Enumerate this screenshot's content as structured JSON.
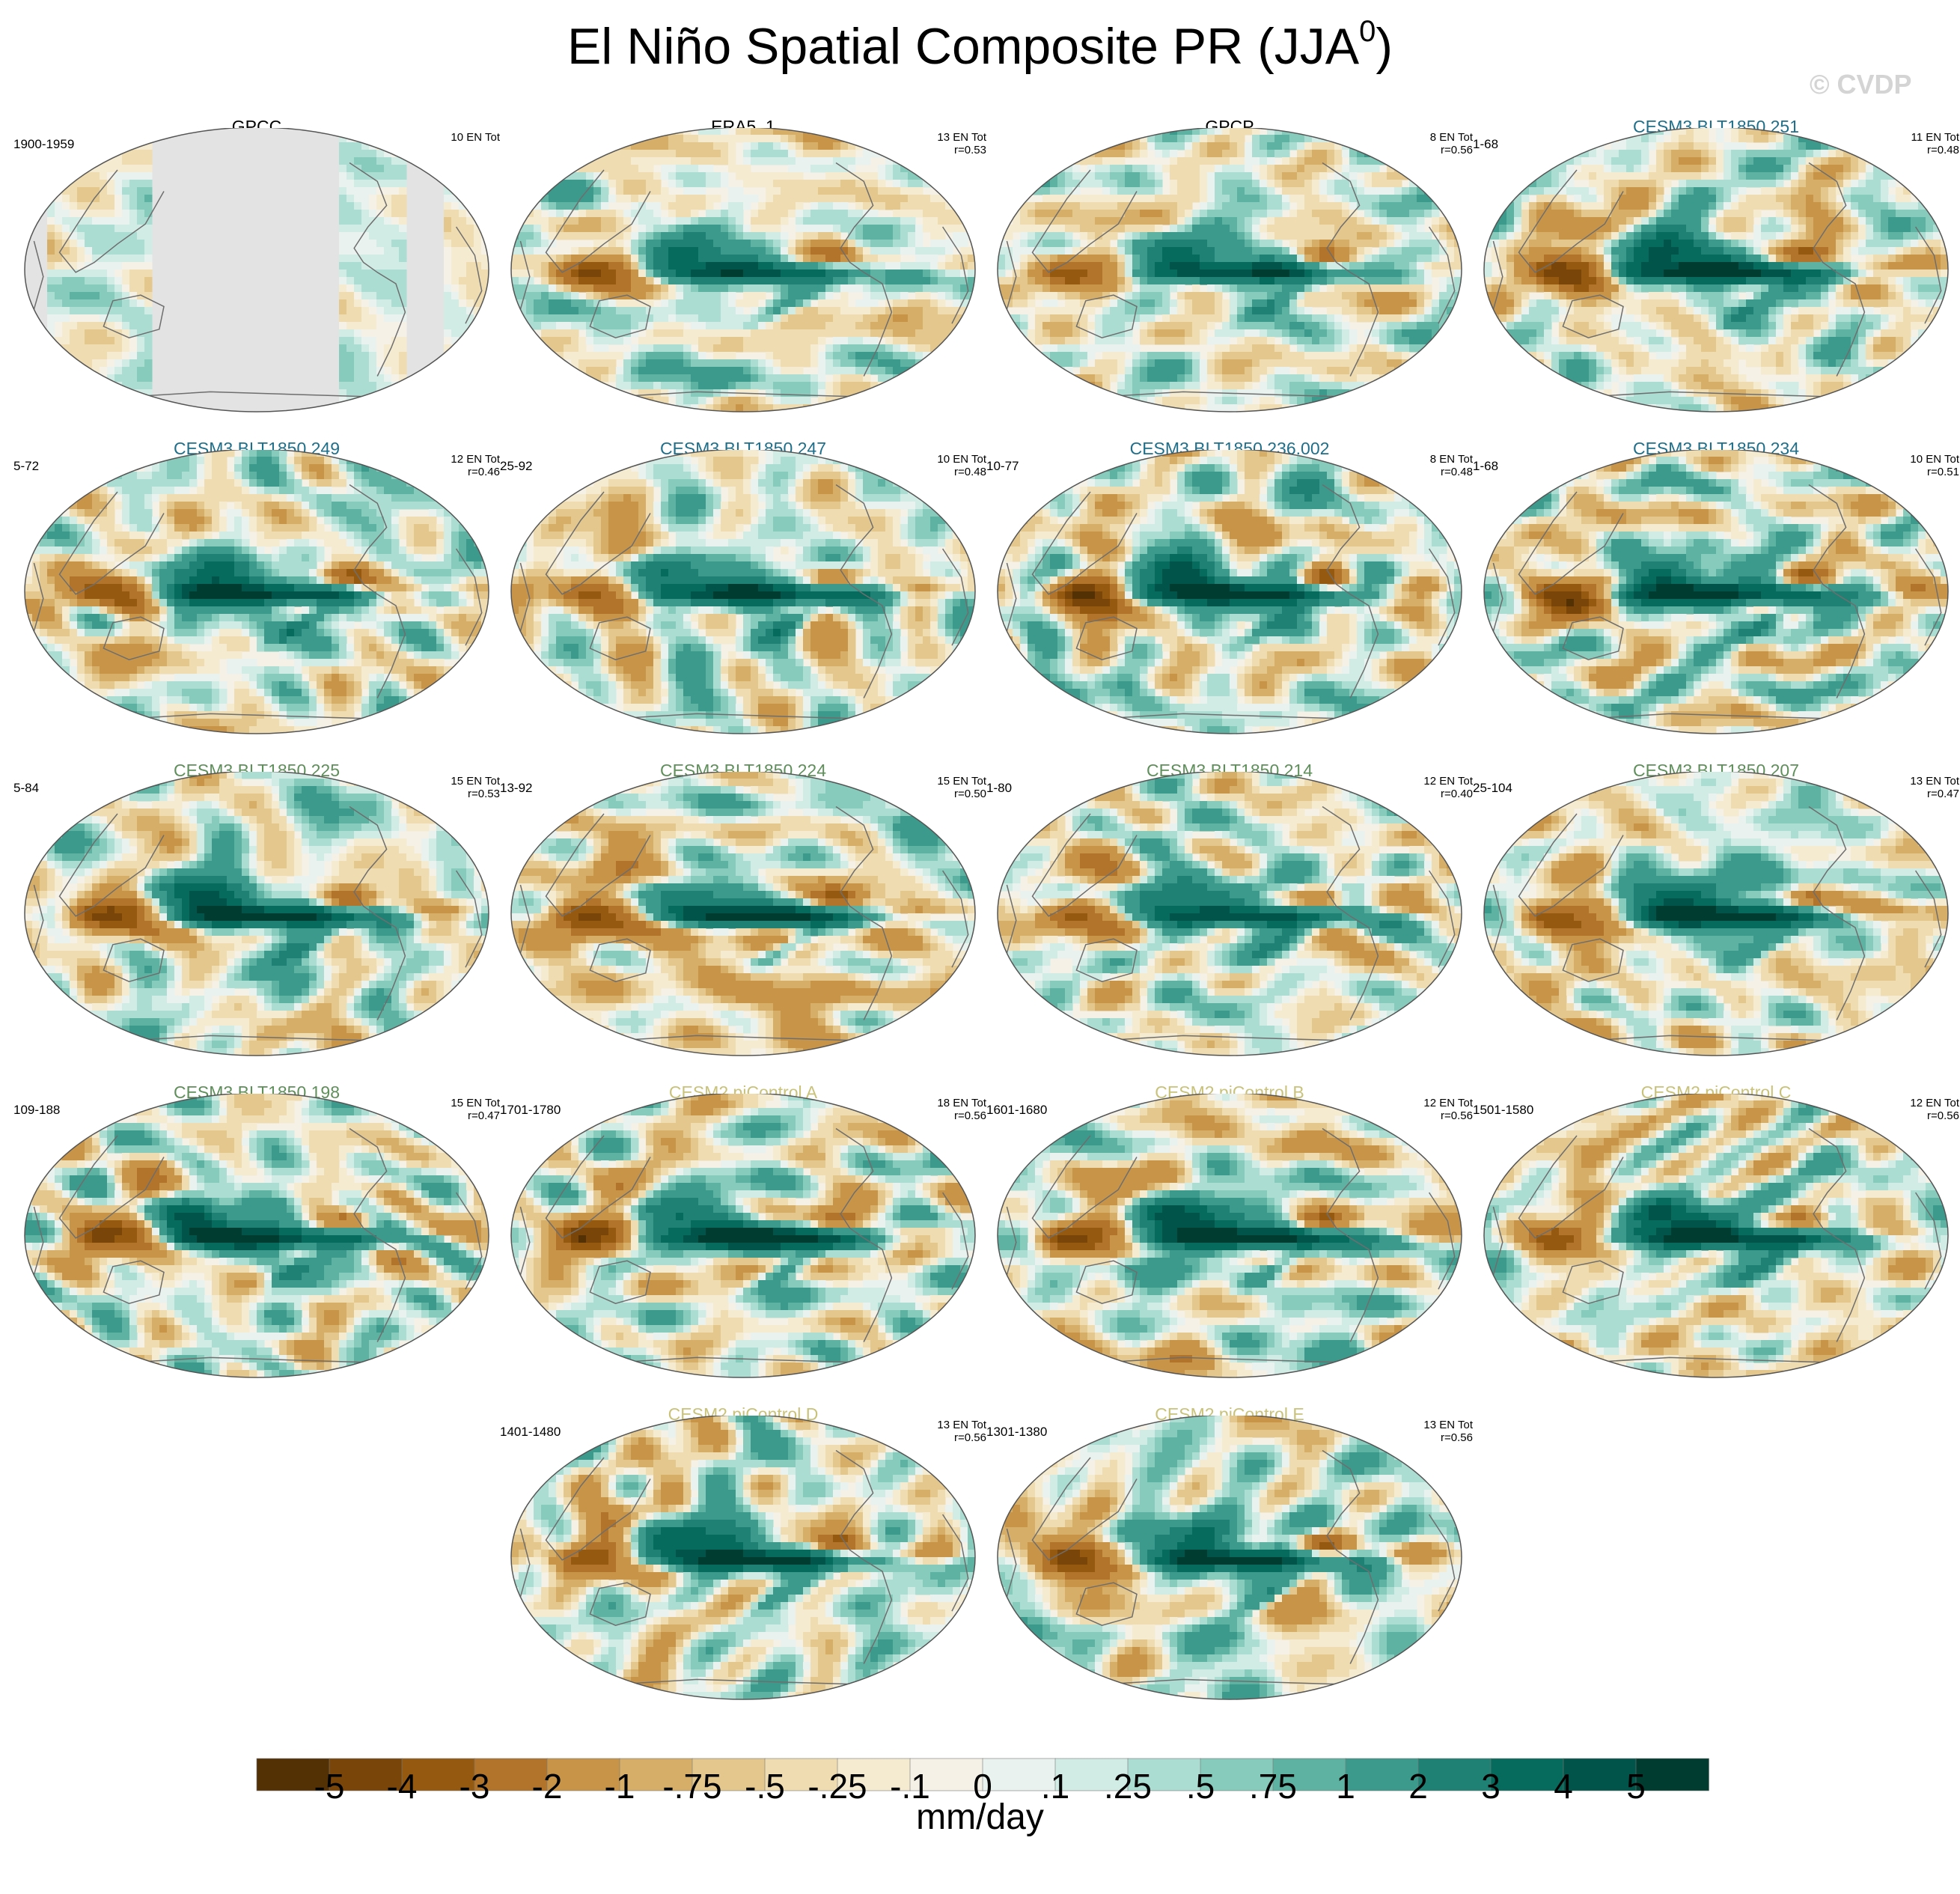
{
  "title": "El Niño Spatial Composite PR (JJA",
  "title_superscript": "0",
  "title_close": ")",
  "watermark": "© CVDP",
  "colors": {
    "title_obs": "#000000",
    "title_cesm3_blue": "#1f6f8b",
    "title_cesm3_green": "#5f8f5a",
    "title_cesm2": "#c9c27a",
    "missing_land": "#e3e3e3",
    "coast": "#6e6e6e"
  },
  "panels": [
    {
      "title": "GPCC",
      "title_color": "obs",
      "period": "1900-1959",
      "en_tot": "10 EN Tot",
      "r": "",
      "pattern": "gpcc",
      "amp": 0.5,
      "seed": 3
    },
    {
      "title": "ERA5_1",
      "title_color": "obs",
      "period": "",
      "en_tot": "13 EN Tot",
      "r": "r=0.53",
      "pattern": "obs",
      "amp": 0.8,
      "seed": 5
    },
    {
      "title": "GPCP",
      "title_color": "obs",
      "period": "",
      "en_tot": "8 EN Tot",
      "r": "r=0.56",
      "pattern": "obs",
      "amp": 0.85,
      "seed": 7
    },
    {
      "title": "CESM3 BLT1850 251",
      "title_color": "blue",
      "period": "1-68",
      "en_tot": "11 EN Tot",
      "r": "r=0.48",
      "pattern": "model",
      "amp": 1.0,
      "seed": 11
    },
    {
      "title": "CESM3 BLT1850 249",
      "title_color": "blue",
      "period": "5-72",
      "en_tot": "12 EN Tot",
      "r": "r=0.46",
      "pattern": "model",
      "amp": 1.0,
      "seed": 13
    },
    {
      "title": "CESM3 BLT1850 247",
      "title_color": "blue",
      "period": "25-92",
      "en_tot": "10 EN Tot",
      "r": "r=0.48",
      "pattern": "model",
      "amp": 1.0,
      "seed": 17
    },
    {
      "title": "CESM3 BLT1850 236.002",
      "title_color": "blue",
      "period": "10-77",
      "en_tot": "8 EN Tot",
      "r": "r=0.48",
      "pattern": "model",
      "amp": 1.0,
      "seed": 19
    },
    {
      "title": "CESM3 BLT1850 234",
      "title_color": "blue",
      "period": "1-68",
      "en_tot": "10 EN Tot",
      "r": "r=0.51",
      "pattern": "model",
      "amp": 1.0,
      "seed": 23
    },
    {
      "title": "CESM3 BLT1850 225",
      "title_color": "green",
      "period": "5-84",
      "en_tot": "15 EN Tot",
      "r": "r=0.53",
      "pattern": "model",
      "amp": 1.0,
      "seed": 29
    },
    {
      "title": "CESM3 BLT1850 224",
      "title_color": "green",
      "period": "13-92",
      "en_tot": "15 EN Tot",
      "r": "r=0.50",
      "pattern": "model",
      "amp": 1.0,
      "seed": 31
    },
    {
      "title": "CESM3 BLT1850 214",
      "title_color": "green",
      "period": "1-80",
      "en_tot": "12 EN Tot",
      "r": "r=0.40",
      "pattern": "model",
      "amp": 0.9,
      "seed": 37
    },
    {
      "title": "CESM3 BLT1850 207",
      "title_color": "green",
      "period": "25-104",
      "en_tot": "13 EN Tot",
      "r": "r=0.47",
      "pattern": "model",
      "amp": 1.0,
      "seed": 41
    },
    {
      "title": "CESM3 BLT1850 198",
      "title_color": "green",
      "period": "109-188",
      "en_tot": "15 EN Tot",
      "r": "r=0.47",
      "pattern": "model",
      "amp": 1.0,
      "seed": 43
    },
    {
      "title": "CESM2 piControl A",
      "title_color": "cesm2",
      "period": "1701-1780",
      "en_tot": "18 EN Tot",
      "r": "r=0.56",
      "pattern": "model",
      "amp": 1.0,
      "seed": 47
    },
    {
      "title": "CESM2 piControl B",
      "title_color": "cesm2",
      "period": "1601-1680",
      "en_tot": "12 EN Tot",
      "r": "r=0.56",
      "pattern": "model",
      "amp": 1.0,
      "seed": 53
    },
    {
      "title": "CESM2 piControl C",
      "title_color": "cesm2",
      "period": "1501-1580",
      "en_tot": "12 EN Tot",
      "r": "r=0.56",
      "pattern": "model",
      "amp": 1.0,
      "seed": 59
    },
    {
      "title": "CESM2 piControl D",
      "title_color": "cesm2",
      "period": "1401-1480",
      "en_tot": "13 EN Tot",
      "r": "r=0.56",
      "pattern": "model",
      "amp": 1.0,
      "seed": 61
    },
    {
      "title": "CESM2 piControl E",
      "title_color": "cesm2",
      "period": "1301-1380",
      "en_tot": "13 EN Tot",
      "r": "r=0.56",
      "pattern": "model",
      "amp": 1.0,
      "seed": 67
    }
  ],
  "colorbar": {
    "units": "mm/day",
    "labels": [
      "-5",
      "-4",
      "-3",
      "-2",
      "-1",
      "-.75",
      "-.5",
      "-.25",
      "-.1",
      "0",
      ".1",
      ".25",
      ".5",
      ".75",
      "1",
      "2",
      "3",
      "4",
      "5"
    ],
    "colors": [
      "#543005",
      "#7a4509",
      "#955a10",
      "#b1742a",
      "#c89548",
      "#d6ae68",
      "#e4c78d",
      "#efdcb0",
      "#f5ebd0",
      "#f5f1e7",
      "#e9f2ef",
      "#d1ebe5",
      "#acddd2",
      "#86cbbb",
      "#5eb2a1",
      "#3b9a8b",
      "#1e8174",
      "#066b5d",
      "#01544a",
      "#003c30"
    ]
  }
}
